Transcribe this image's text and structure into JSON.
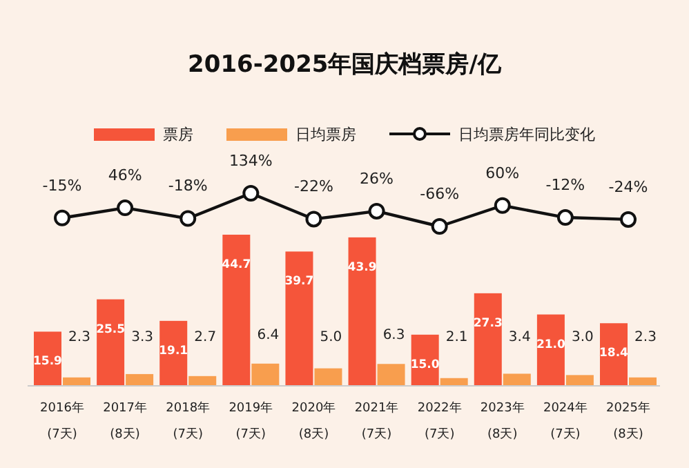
{
  "chart_data": [
    {
      "type": "line",
      "title": "2016-2025年国庆档票房/亿",
      "categories": [
        null,
        null,
        null,
        null,
        null,
        null,
        null,
        null,
        null,
        null
      ],
      "legend": "top",
      "marker": "circle",
      "series": [
        {
          "name": "日均票房年同比变化",
          "color": "#111111",
          "values": [
            -15,
            46,
            -18,
            134,
            -22,
            26,
            -66,
            60,
            -12,
            -24
          ],
          "value_labels": [
            "-15%",
            "46%",
            "-18%",
            "134%",
            "-22%",
            "26%",
            "-66%",
            "60%",
            "-12%",
            "-24%"
          ]
        }
      ]
    },
    {
      "type": "bar",
      "legend": "top",
      "categories": [
        "2016年\n(7天)",
        "2017年\n(8天)",
        "2018年\n(7天)",
        "2019年\n(7天)",
        "2020年\n(8天)",
        "2021年\n(7天)",
        "2022年\n(7天)",
        "2023年\n(8天)",
        "2024年\n(7天)",
        "2025年\n(8天)"
      ],
      "series": [
        {
          "name": "票房",
          "color": "#f5553a",
          "values": [
            15.9,
            25.5,
            19.1,
            44.7,
            39.7,
            43.9,
            15.0,
            27.3,
            21.0,
            18.4
          ],
          "value_labels": [
            "15.9",
            "25.5",
            "19.1",
            "44.7",
            "39.7",
            "43.9",
            "15.0",
            "27.3",
            "21.0",
            "18.4"
          ]
        },
        {
          "name": "日均票房",
          "color": "#f89e4e",
          "values": [
            2.3,
            3.3,
            2.7,
            6.4,
            5.0,
            6.3,
            2.1,
            3.4,
            3.0,
            2.3
          ],
          "value_labels": [
            "2.3",
            "3.3",
            "2.7",
            "6.4",
            "5.0",
            "6.3",
            "2.1",
            "3.4",
            "3.0",
            "2.3"
          ]
        }
      ]
    }
  ]
}
